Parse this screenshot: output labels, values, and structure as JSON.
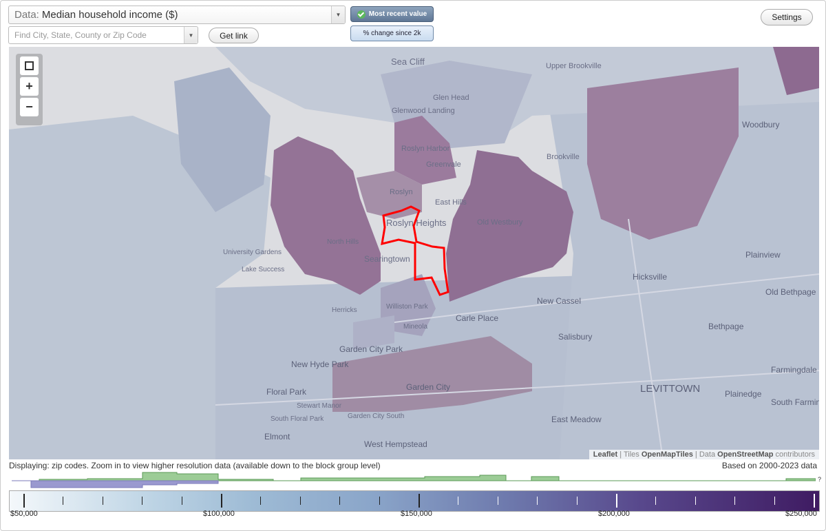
{
  "controls": {
    "data_prefix": "Data:",
    "data_value": "Median household income ($)",
    "search_placeholder": "Find City, State, County or Zip Code",
    "get_link": "Get link",
    "settings": "Settings",
    "toggle_active": "Most recent value",
    "toggle_inactive": "% change since 2k"
  },
  "map": {
    "labels": [
      "Sea Cliff",
      "Glen Head",
      "Glenwood Landing",
      "Roslyn Harbor",
      "Greenvale",
      "Roslyn",
      "East Hills",
      "Roslyn Heights",
      "Old Westbury",
      "Brookville",
      "Upper Brookville",
      "Woodbury",
      "Plainview",
      "Hicksville",
      "Old Bethpage",
      "Bethpage",
      "New Cassel",
      "Carle Place",
      "Salisbury",
      "University Gardens",
      "Lake Success",
      "North Hills",
      "Searingtown",
      "Williston Park",
      "Herricks",
      "Mineola",
      "Garden City Park",
      "New Hyde Park",
      "Garden City",
      "Floral Park",
      "Stewart Manor",
      "South Floral Park",
      "Garden City South",
      "Elmont",
      "West Hempstead",
      "LEVITTOWN",
      "Plainedge",
      "Farmingdale",
      "South Farmingdale",
      "East Meadow"
    ],
    "zoom_in": "+",
    "zoom_out": "−",
    "attribution": {
      "leaflet": "Leaflet",
      "tiles_prefix": "Tiles",
      "tiles": "OpenMapTiles",
      "data_prefix": "Data",
      "data": "OpenStreetMap",
      "suffix": "contributors"
    },
    "colors": {
      "boundary": "#ff0000",
      "water": "#dcdde1",
      "low": "#b9c3d3",
      "high": "#8e6a92"
    }
  },
  "status_text": "Displaying: zip codes. Zoom in to view higher resolution data (available down to the block group level)",
  "years_text": "Based on 2000-2023 data",
  "histogram_unknown": "?",
  "legend": {
    "labels": [
      "$50,000",
      "$100,000",
      "$150,000",
      "$200,000",
      "$250,000"
    ],
    "min": 50000,
    "max": 250000
  }
}
